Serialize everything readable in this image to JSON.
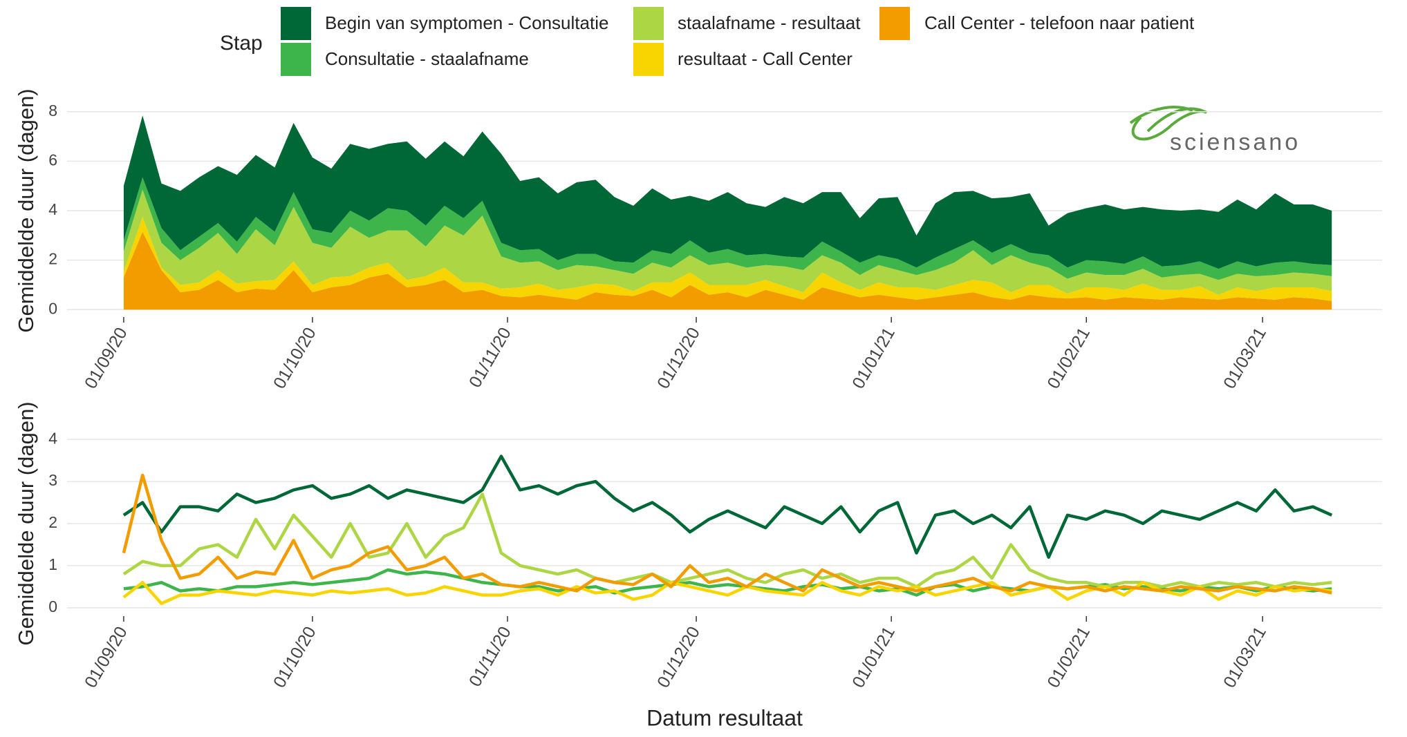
{
  "logo": "sciensano",
  "chart_data": [
    {
      "type": "area",
      "stacked": true,
      "ylabel": "Gemiddelde duur (dagen)",
      "legend_title": "Stap",
      "x": [
        "2020-09-01",
        "2020-09-04",
        "2020-09-07",
        "2020-09-10",
        "2020-09-13",
        "2020-09-16",
        "2020-09-19",
        "2020-09-22",
        "2020-09-25",
        "2020-09-28",
        "2020-10-01",
        "2020-10-04",
        "2020-10-07",
        "2020-10-10",
        "2020-10-13",
        "2020-10-16",
        "2020-10-19",
        "2020-10-22",
        "2020-10-25",
        "2020-10-28",
        "2020-10-31",
        "2020-11-03",
        "2020-11-06",
        "2020-11-09",
        "2020-11-12",
        "2020-11-15",
        "2020-11-18",
        "2020-11-21",
        "2020-11-24",
        "2020-11-27",
        "2020-11-30",
        "2020-12-03",
        "2020-12-06",
        "2020-12-09",
        "2020-12-12",
        "2020-12-15",
        "2020-12-18",
        "2020-12-21",
        "2020-12-24",
        "2020-12-27",
        "2020-12-30",
        "2021-01-02",
        "2021-01-05",
        "2021-01-08",
        "2021-01-11",
        "2021-01-14",
        "2021-01-17",
        "2021-01-20",
        "2021-01-23",
        "2021-01-26",
        "2021-01-29",
        "2021-02-01",
        "2021-02-04",
        "2021-02-07",
        "2021-02-10",
        "2021-02-13",
        "2021-02-16",
        "2021-02-19",
        "2021-02-22",
        "2021-02-25",
        "2021-02-28",
        "2021-03-03",
        "2021-03-06",
        "2021-03-09",
        "2021-03-12"
      ],
      "series": [
        {
          "name": "Begin van symptomen - Consultatie",
          "color": "#006837",
          "values": [
            2.2,
            2.5,
            1.8,
            2.4,
            2.4,
            2.3,
            2.7,
            2.5,
            2.6,
            2.8,
            2.9,
            2.6,
            2.7,
            2.9,
            2.6,
            2.8,
            2.7,
            2.6,
            2.5,
            2.8,
            3.6,
            2.8,
            2.9,
            2.7,
            2.9,
            3.0,
            2.6,
            2.3,
            2.5,
            2.2,
            1.8,
            2.1,
            2.3,
            2.1,
            1.9,
            2.4,
            2.2,
            2.0,
            2.4,
            1.8,
            2.3,
            2.5,
            1.3,
            2.2,
            2.3,
            2.0,
            2.2,
            1.9,
            2.4,
            1.2,
            2.2,
            2.1,
            2.3,
            2.2,
            2.0,
            2.3,
            2.2,
            2.1,
            2.3,
            2.5,
            2.3,
            2.8,
            2.3,
            2.4,
            2.2
          ]
        },
        {
          "name": "Consultatie - staalafname",
          "color": "#3db54a",
          "values": [
            0.45,
            0.5,
            0.6,
            0.4,
            0.45,
            0.4,
            0.5,
            0.5,
            0.55,
            0.6,
            0.55,
            0.6,
            0.65,
            0.7,
            0.9,
            0.8,
            0.85,
            0.8,
            0.7,
            0.6,
            0.55,
            0.5,
            0.5,
            0.4,
            0.45,
            0.5,
            0.35,
            0.45,
            0.5,
            0.55,
            0.6,
            0.5,
            0.55,
            0.5,
            0.45,
            0.4,
            0.5,
            0.55,
            0.45,
            0.5,
            0.4,
            0.45,
            0.3,
            0.5,
            0.55,
            0.4,
            0.5,
            0.45,
            0.4,
            0.5,
            0.45,
            0.5,
            0.55,
            0.45,
            0.5,
            0.45,
            0.4,
            0.5,
            0.45,
            0.5,
            0.4,
            0.5,
            0.45,
            0.4,
            0.45
          ]
        },
        {
          "name": "staalafname - resultaat",
          "color": "#add645",
          "values": [
            0.8,
            1.1,
            1.0,
            1.0,
            1.4,
            1.5,
            1.2,
            2.1,
            1.4,
            2.2,
            1.7,
            1.2,
            2.0,
            1.2,
            1.3,
            2.0,
            1.2,
            1.7,
            1.9,
            2.7,
            1.3,
            1.0,
            0.9,
            0.8,
            0.9,
            0.7,
            0.6,
            0.7,
            0.8,
            0.6,
            0.7,
            0.8,
            0.9,
            0.7,
            0.6,
            0.8,
            0.9,
            0.7,
            0.8,
            0.6,
            0.7,
            0.7,
            0.5,
            0.8,
            0.9,
            1.2,
            0.7,
            1.5,
            0.9,
            0.7,
            0.6,
            0.6,
            0.5,
            0.6,
            0.6,
            0.5,
            0.6,
            0.5,
            0.6,
            0.55,
            0.6,
            0.5,
            0.6,
            0.55,
            0.6
          ]
        },
        {
          "name": "resultaat - Call Center",
          "color": "#f8d500",
          "values": [
            0.25,
            0.6,
            0.1,
            0.3,
            0.3,
            0.4,
            0.35,
            0.3,
            0.4,
            0.35,
            0.3,
            0.4,
            0.35,
            0.4,
            0.45,
            0.3,
            0.35,
            0.5,
            0.4,
            0.3,
            0.3,
            0.4,
            0.45,
            0.3,
            0.5,
            0.35,
            0.4,
            0.2,
            0.3,
            0.6,
            0.5,
            0.4,
            0.3,
            0.5,
            0.4,
            0.35,
            0.3,
            0.6,
            0.4,
            0.3,
            0.5,
            0.4,
            0.5,
            0.3,
            0.4,
            0.5,
            0.6,
            0.3,
            0.4,
            0.5,
            0.2,
            0.4,
            0.5,
            0.3,
            0.6,
            0.4,
            0.3,
            0.5,
            0.2,
            0.4,
            0.3,
            0.5,
            0.4,
            0.45,
            0.4
          ]
        },
        {
          "name": "Call Center - telefoon naar patient",
          "color": "#f29c00",
          "values": [
            1.3,
            3.15,
            1.6,
            0.7,
            0.8,
            1.2,
            0.7,
            0.85,
            0.8,
            1.6,
            0.7,
            0.9,
            1.0,
            1.3,
            1.45,
            0.9,
            1.0,
            1.2,
            0.7,
            0.8,
            0.55,
            0.5,
            0.6,
            0.5,
            0.4,
            0.7,
            0.6,
            0.55,
            0.8,
            0.5,
            1.0,
            0.6,
            0.7,
            0.5,
            0.8,
            0.6,
            0.4,
            0.9,
            0.7,
            0.5,
            0.6,
            0.5,
            0.4,
            0.5,
            0.6,
            0.7,
            0.5,
            0.4,
            0.6,
            0.5,
            0.45,
            0.5,
            0.4,
            0.5,
            0.45,
            0.4,
            0.5,
            0.45,
            0.4,
            0.5,
            0.45,
            0.4,
            0.5,
            0.45,
            0.35
          ]
        }
      ],
      "xlim": [
        "2020-08-23",
        "2021-03-20"
      ],
      "xticks": [
        {
          "value": "2020-09-01",
          "label": "01/09/20"
        },
        {
          "value": "2020-10-01",
          "label": "01/10/20"
        },
        {
          "value": "2020-11-01",
          "label": "01/11/20"
        },
        {
          "value": "2020-12-01",
          "label": "01/12/20"
        },
        {
          "value": "2021-01-01",
          "label": "01/01/21"
        },
        {
          "value": "2021-02-01",
          "label": "01/02/21"
        },
        {
          "value": "2021-03-01",
          "label": "01/03/21"
        }
      ],
      "ylim": [
        -0.3,
        8.3
      ],
      "yticks": [
        0,
        2,
        4,
        6,
        8
      ],
      "grid": true
    },
    {
      "type": "line",
      "ylabel": "Gemiddelde duur (dagen)",
      "xlabel": "Datum resultaat",
      "x": [
        "2020-09-01",
        "2020-09-04",
        "2020-09-07",
        "2020-09-10",
        "2020-09-13",
        "2020-09-16",
        "2020-09-19",
        "2020-09-22",
        "2020-09-25",
        "2020-09-28",
        "2020-10-01",
        "2020-10-04",
        "2020-10-07",
        "2020-10-10",
        "2020-10-13",
        "2020-10-16",
        "2020-10-19",
        "2020-10-22",
        "2020-10-25",
        "2020-10-28",
        "2020-10-31",
        "2020-11-03",
        "2020-11-06",
        "2020-11-09",
        "2020-11-12",
        "2020-11-15",
        "2020-11-18",
        "2020-11-21",
        "2020-11-24",
        "2020-11-27",
        "2020-11-30",
        "2020-12-03",
        "2020-12-06",
        "2020-12-09",
        "2020-12-12",
        "2020-12-15",
        "2020-12-18",
        "2020-12-21",
        "2020-12-24",
        "2020-12-27",
        "2020-12-30",
        "2021-01-02",
        "2021-01-05",
        "2021-01-08",
        "2021-01-11",
        "2021-01-14",
        "2021-01-17",
        "2021-01-20",
        "2021-01-23",
        "2021-01-26",
        "2021-01-29",
        "2021-02-01",
        "2021-02-04",
        "2021-02-07",
        "2021-02-10",
        "2021-02-13",
        "2021-02-16",
        "2021-02-19",
        "2021-02-22",
        "2021-02-25",
        "2021-02-28",
        "2021-03-03",
        "2021-03-06",
        "2021-03-09",
        "2021-03-12"
      ],
      "series": [
        {
          "name": "Begin van symptomen - Consultatie",
          "color": "#006837",
          "values": [
            2.2,
            2.5,
            1.8,
            2.4,
            2.4,
            2.3,
            2.7,
            2.5,
            2.6,
            2.8,
            2.9,
            2.6,
            2.7,
            2.9,
            2.6,
            2.8,
            2.7,
            2.6,
            2.5,
            2.8,
            3.6,
            2.8,
            2.9,
            2.7,
            2.9,
            3.0,
            2.6,
            2.3,
            2.5,
            2.2,
            1.8,
            2.1,
            2.3,
            2.1,
            1.9,
            2.4,
            2.2,
            2.0,
            2.4,
            1.8,
            2.3,
            2.5,
            1.3,
            2.2,
            2.3,
            2.0,
            2.2,
            1.9,
            2.4,
            1.2,
            2.2,
            2.1,
            2.3,
            2.2,
            2.0,
            2.3,
            2.2,
            2.1,
            2.3,
            2.5,
            2.3,
            2.8,
            2.3,
            2.4,
            2.2
          ]
        },
        {
          "name": "Consultatie - staalafname",
          "color": "#3db54a",
          "values": [
            0.45,
            0.5,
            0.6,
            0.4,
            0.45,
            0.4,
            0.5,
            0.5,
            0.55,
            0.6,
            0.55,
            0.6,
            0.65,
            0.7,
            0.9,
            0.8,
            0.85,
            0.8,
            0.7,
            0.6,
            0.55,
            0.5,
            0.5,
            0.4,
            0.45,
            0.5,
            0.35,
            0.45,
            0.5,
            0.55,
            0.6,
            0.5,
            0.55,
            0.5,
            0.45,
            0.4,
            0.5,
            0.55,
            0.45,
            0.5,
            0.4,
            0.45,
            0.3,
            0.5,
            0.55,
            0.4,
            0.5,
            0.45,
            0.4,
            0.5,
            0.45,
            0.5,
            0.55,
            0.45,
            0.5,
            0.45,
            0.4,
            0.5,
            0.45,
            0.5,
            0.4,
            0.5,
            0.45,
            0.4,
            0.45
          ]
        },
        {
          "name": "staalafname - resultaat",
          "color": "#add645",
          "values": [
            0.8,
            1.1,
            1.0,
            1.0,
            1.4,
            1.5,
            1.2,
            2.1,
            1.4,
            2.2,
            1.7,
            1.2,
            2.0,
            1.2,
            1.3,
            2.0,
            1.2,
            1.7,
            1.9,
            2.7,
            1.3,
            1.0,
            0.9,
            0.8,
            0.9,
            0.7,
            0.6,
            0.7,
            0.8,
            0.6,
            0.7,
            0.8,
            0.9,
            0.7,
            0.6,
            0.8,
            0.9,
            0.7,
            0.8,
            0.6,
            0.7,
            0.7,
            0.5,
            0.8,
            0.9,
            1.2,
            0.7,
            1.5,
            0.9,
            0.7,
            0.6,
            0.6,
            0.5,
            0.6,
            0.6,
            0.5,
            0.6,
            0.5,
            0.6,
            0.55,
            0.6,
            0.5,
            0.6,
            0.55,
            0.6
          ]
        },
        {
          "name": "resultaat - Call Center",
          "color": "#f8d500",
          "values": [
            0.25,
            0.6,
            0.1,
            0.3,
            0.3,
            0.4,
            0.35,
            0.3,
            0.4,
            0.35,
            0.3,
            0.4,
            0.35,
            0.4,
            0.45,
            0.3,
            0.35,
            0.5,
            0.4,
            0.3,
            0.3,
            0.4,
            0.45,
            0.3,
            0.5,
            0.35,
            0.4,
            0.2,
            0.3,
            0.6,
            0.5,
            0.4,
            0.3,
            0.5,
            0.4,
            0.35,
            0.3,
            0.6,
            0.4,
            0.3,
            0.5,
            0.4,
            0.5,
            0.3,
            0.4,
            0.5,
            0.6,
            0.3,
            0.4,
            0.5,
            0.2,
            0.4,
            0.5,
            0.3,
            0.6,
            0.4,
            0.3,
            0.5,
            0.2,
            0.4,
            0.3,
            0.5,
            0.4,
            0.45,
            0.4
          ]
        },
        {
          "name": "Call Center - telefoon naar patient",
          "color": "#f29c00",
          "values": [
            1.3,
            3.15,
            1.6,
            0.7,
            0.8,
            1.2,
            0.7,
            0.85,
            0.8,
            1.6,
            0.7,
            0.9,
            1.0,
            1.3,
            1.45,
            0.9,
            1.0,
            1.2,
            0.7,
            0.8,
            0.55,
            0.5,
            0.6,
            0.5,
            0.4,
            0.7,
            0.6,
            0.55,
            0.8,
            0.5,
            1.0,
            0.6,
            0.7,
            0.5,
            0.8,
            0.6,
            0.4,
            0.9,
            0.7,
            0.5,
            0.6,
            0.5,
            0.4,
            0.5,
            0.6,
            0.7,
            0.5,
            0.4,
            0.6,
            0.5,
            0.45,
            0.5,
            0.4,
            0.5,
            0.45,
            0.4,
            0.5,
            0.45,
            0.4,
            0.5,
            0.45,
            0.4,
            0.5,
            0.45,
            0.35
          ]
        }
      ],
      "xlim": [
        "2020-08-23",
        "2021-03-20"
      ],
      "xticks": [
        {
          "value": "2020-09-01",
          "label": "01/09/20"
        },
        {
          "value": "2020-10-01",
          "label": "01/10/20"
        },
        {
          "value": "2020-11-01",
          "label": "01/11/20"
        },
        {
          "value": "2020-12-01",
          "label": "01/12/20"
        },
        {
          "value": "2021-01-01",
          "label": "01/01/21"
        },
        {
          "value": "2021-02-01",
          "label": "01/02/21"
        },
        {
          "value": "2021-03-01",
          "label": "01/03/21"
        }
      ],
      "ylim": [
        -0.2,
        4.2
      ],
      "yticks": [
        0,
        1,
        2,
        3,
        4
      ],
      "grid": true
    }
  ]
}
